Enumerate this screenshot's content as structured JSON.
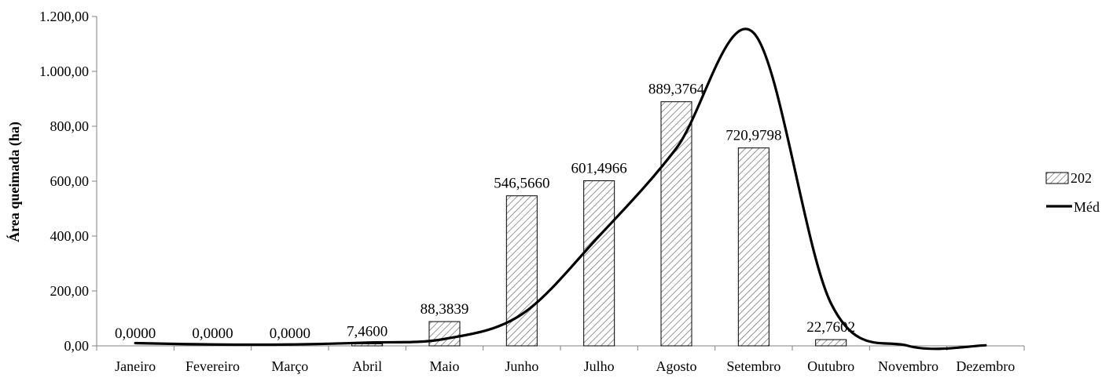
{
  "chart_data": {
    "type": "bar",
    "title": "",
    "xlabel": "",
    "ylabel": "Área queimada  (ha)",
    "ylim": [
      0,
      1200
    ],
    "y_ticks": [
      0,
      200,
      400,
      600,
      800,
      1000,
      1200
    ],
    "y_tick_labels": [
      "0,00",
      "200,00",
      "400,00",
      "600,00",
      "800,00",
      "1.000,00",
      "1.200,00"
    ],
    "categories": [
      "Janeiro",
      "Fevereiro",
      "Março",
      "Abril",
      "Maio",
      "Junho",
      "Julho",
      "Agosto",
      "Setembro",
      "Outubro",
      "Novembro",
      "Dezembro"
    ],
    "grid": false,
    "legend_position": "right",
    "series": [
      {
        "name": "202",
        "kind": "bar",
        "pattern": "diagonal-hatch",
        "values": [
          0.0,
          0.0,
          0.0,
          7.46,
          88.3839,
          546.566,
          601.4966,
          889.3764,
          720.9798,
          22.7602,
          null,
          null
        ],
        "data_labels": [
          "0,0000",
          "0,0000",
          "0,0000",
          "7,4600",
          "88,3839",
          "546,5660",
          "601,4966",
          "889,3764",
          "720,9798",
          "22,7602",
          "",
          ""
        ]
      },
      {
        "name": "Méd",
        "kind": "line",
        "smooth": true,
        "color": "#000000",
        "values": [
          10,
          5,
          5,
          12,
          25,
          115,
          400,
          720,
          1140,
          155,
          0,
          2
        ]
      }
    ]
  }
}
